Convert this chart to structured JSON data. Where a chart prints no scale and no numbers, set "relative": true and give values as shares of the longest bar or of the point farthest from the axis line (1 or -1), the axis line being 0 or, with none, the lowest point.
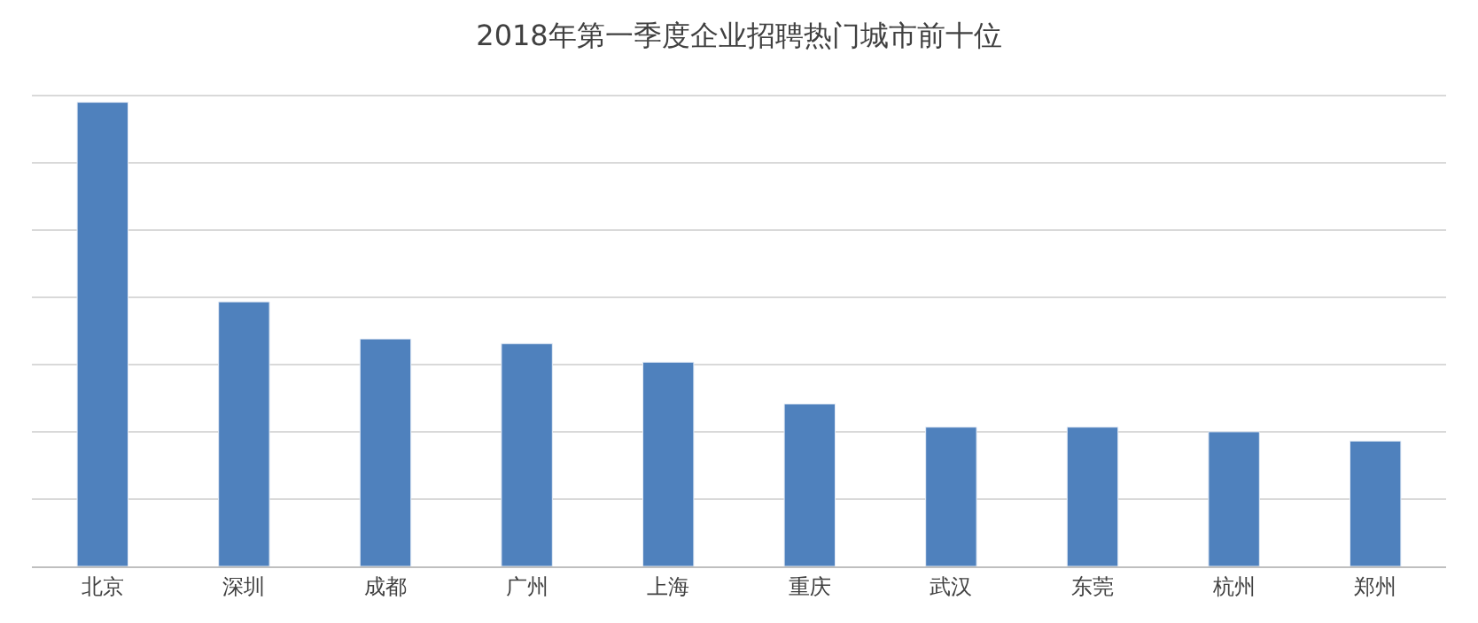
{
  "chart_data": {
    "type": "bar",
    "title": "2018年第一季度企业招聘热门城市前十位",
    "categories": [
      "北京",
      "深圳",
      "成都",
      "广州",
      "上海",
      "重庆",
      "武汉",
      "东莞",
      "杭州",
      "郑州"
    ],
    "values": [
      1,
      0.57,
      0.49,
      0.48,
      0.44,
      0.35,
      0.3,
      0.3,
      0.29,
      0.27
    ],
    "color": "#4f81bd",
    "relative": true,
    "grid": "y",
    "legend": false
  }
}
